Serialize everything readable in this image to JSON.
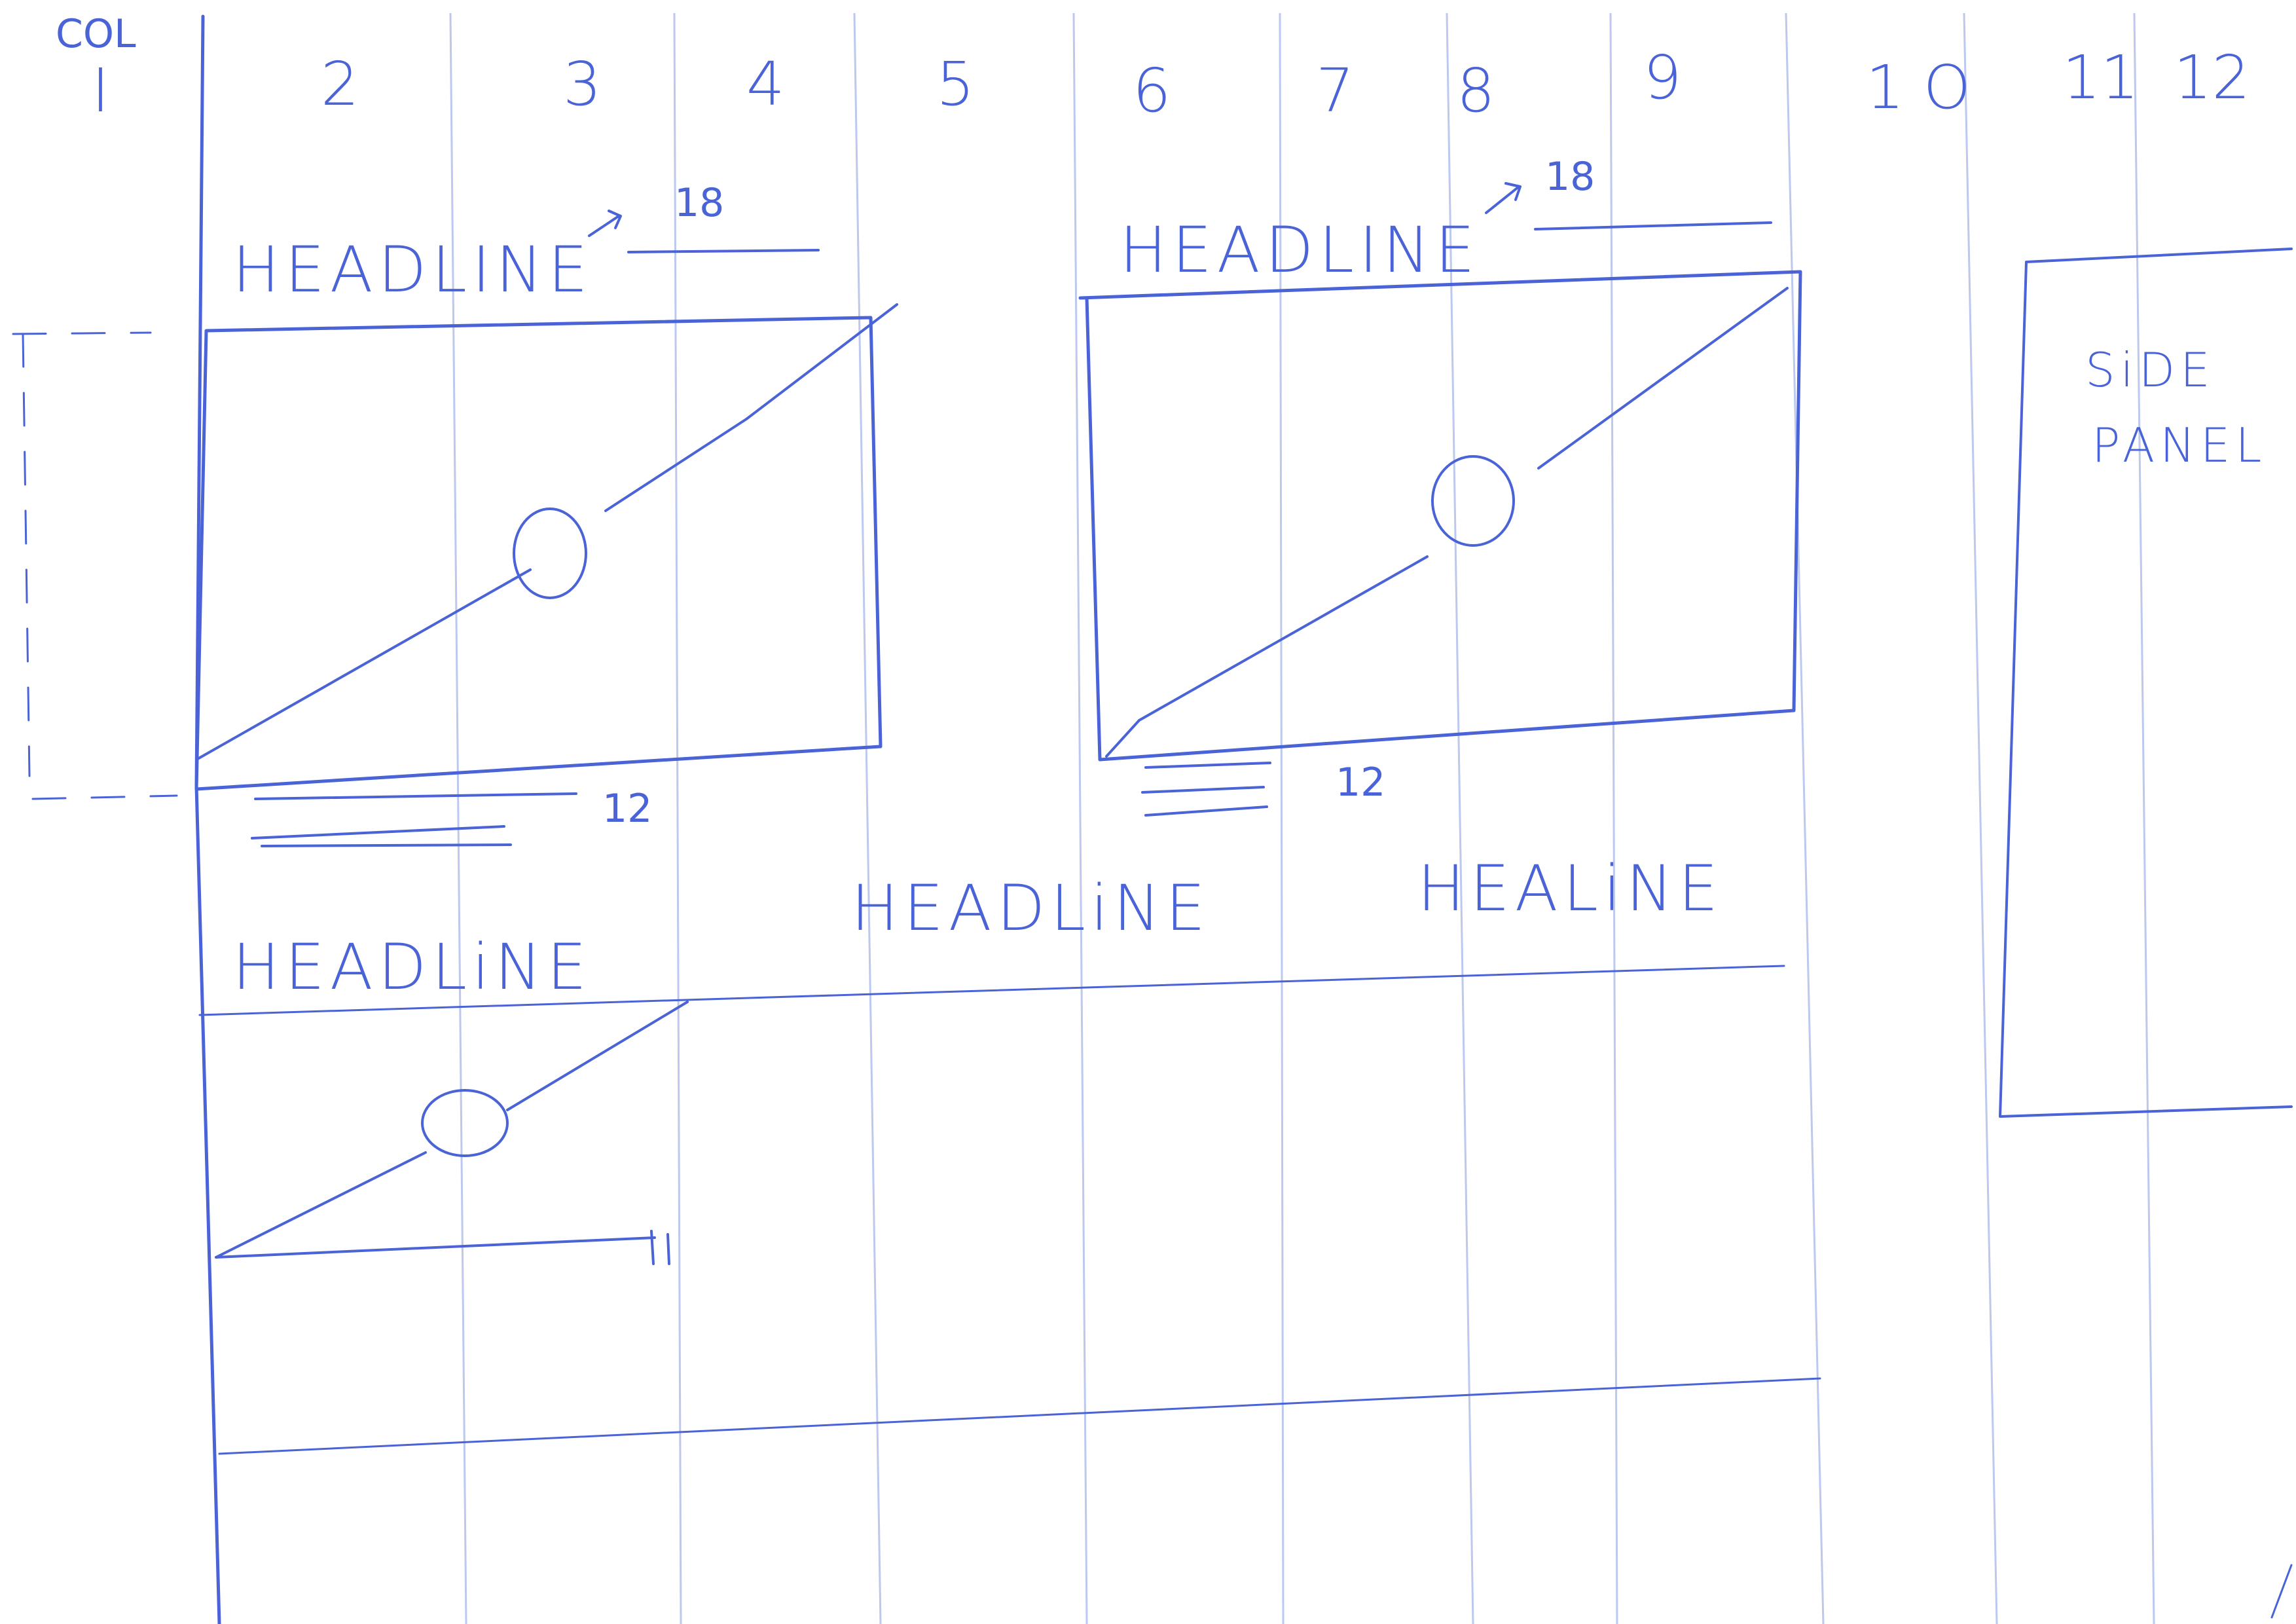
{
  "sketch": {
    "column_marker": "COL",
    "column_numbers": [
      "I",
      "2",
      "3",
      "4",
      "5",
      "6",
      "7",
      "8",
      "9",
      "1 O",
      "11",
      "12"
    ],
    "modules": [
      {
        "headline": "HEADLINE",
        "headline_size": "18",
        "caption_size": "12"
      },
      {
        "headline": "HEADLINE",
        "headline_size": "18",
        "caption_size": "12"
      }
    ],
    "row_headlines": [
      "HEADLiNE",
      "HEADLiNE",
      "HEALiNE"
    ],
    "side_panel": {
      "line1": "SiDE",
      "line2": "PANEL"
    },
    "ink_color": "#4a63d6",
    "grid_color": "#bcc8ee"
  }
}
